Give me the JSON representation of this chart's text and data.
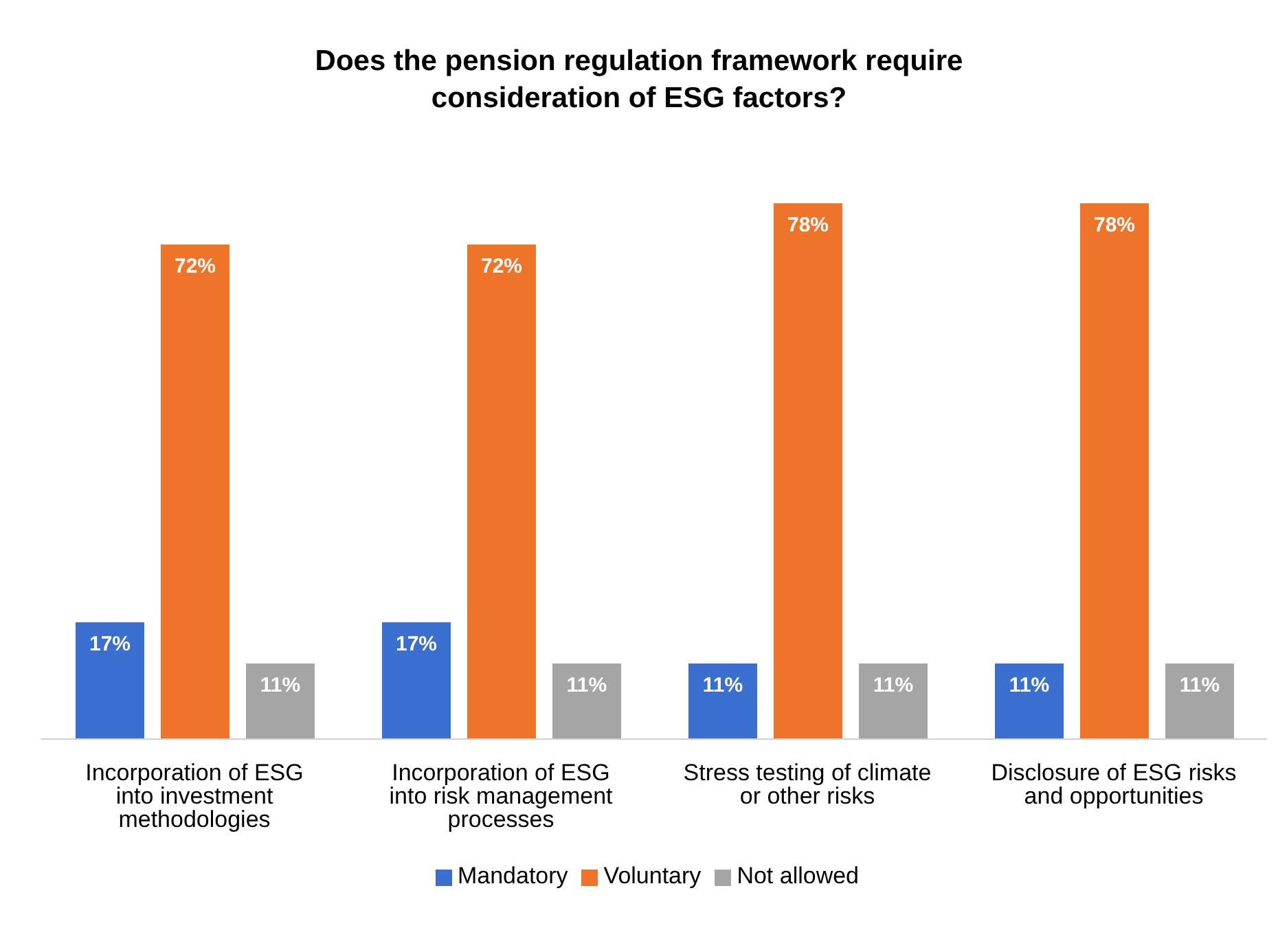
{
  "chart_data": {
    "type": "bar",
    "title": "Does the pension regulation framework require consideration of ESG factors?",
    "categories": [
      "Incorporation of ESG into investment methodologies",
      "Incorporation of ESG into risk management processes",
      "Stress testing of climate or other risks",
      "Disclosure of ESG risks and opportunities"
    ],
    "series": [
      {
        "name": "Mandatory",
        "color": "#3a6fd0",
        "values": [
          17,
          17,
          11,
          11
        ],
        "value_labels": [
          "17%",
          "17%",
          "11%",
          "11%"
        ]
      },
      {
        "name": "Voluntary",
        "color": "#ed7428",
        "values": [
          72,
          72,
          78,
          78
        ],
        "value_labels": [
          "72%",
          "72%",
          "78%",
          "78%"
        ]
      },
      {
        "name": "Not allowed",
        "color": "#a5a5a5",
        "values": [
          11,
          11,
          11,
          11
        ],
        "value_labels": [
          "11%",
          "11%",
          "11%",
          "11%"
        ]
      }
    ],
    "legend": "bottom",
    "grid": false
  }
}
